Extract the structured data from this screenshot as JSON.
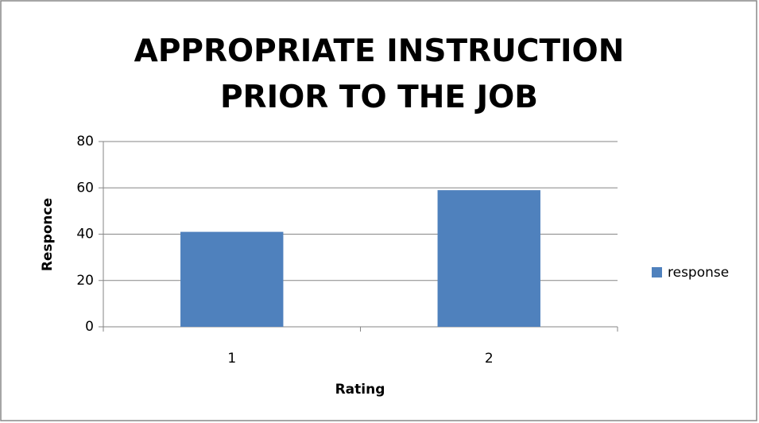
{
  "chart_data": {
    "type": "bar",
    "title": "APPROPRIATE INSTRUCTION PRIOR TO THE JOB",
    "x_label": "Rating",
    "y_label": "Responce",
    "categories": [
      "1",
      "2"
    ],
    "series": [
      {
        "name": "response",
        "color": "#4f81bd",
        "values": [
          41,
          59
        ]
      }
    ],
    "ylim": [
      0,
      80
    ],
    "yticks": [
      0,
      20,
      40,
      60,
      80
    ],
    "grid": true,
    "legend": "right"
  }
}
